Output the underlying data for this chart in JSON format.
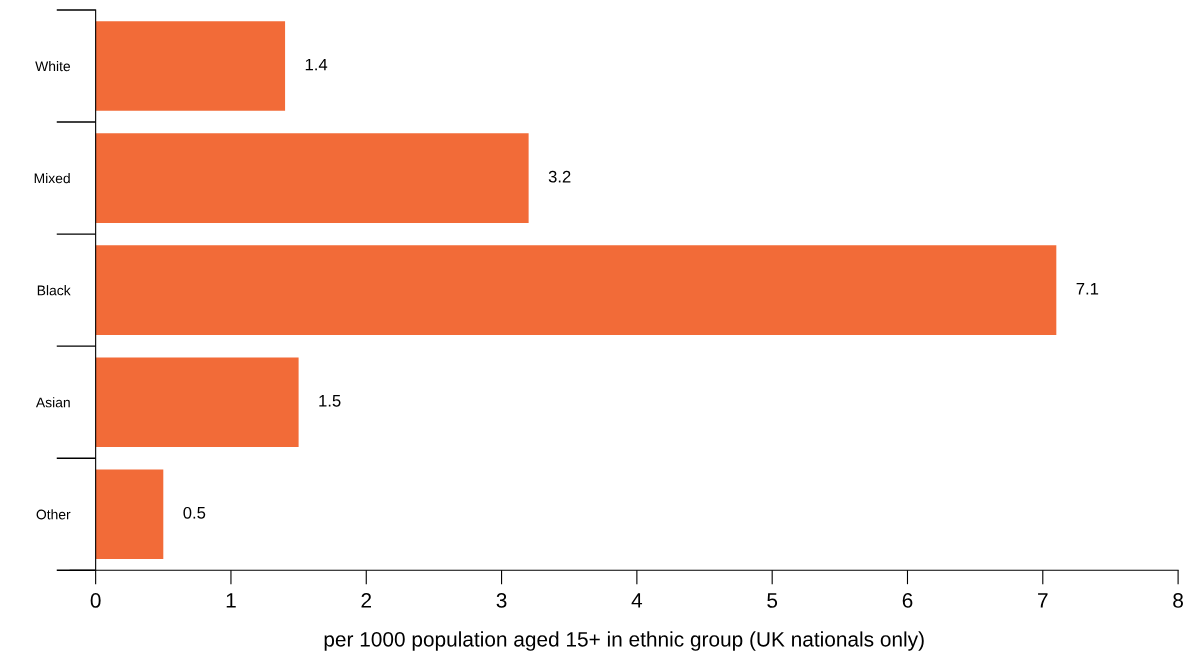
{
  "chart_data": {
    "type": "bar",
    "orientation": "horizontal",
    "categories": [
      "White",
      "Mixed",
      "Black",
      "Asian",
      "Other"
    ],
    "values": [
      1.4,
      3.2,
      7.1,
      1.5,
      0.5
    ],
    "color": "#f26b38",
    "xlim": [
      0,
      8
    ],
    "xticks": [
      0,
      1,
      2,
      3,
      4,
      5,
      6,
      7,
      8
    ],
    "xlabel": "per 1000 population aged 15+ in ethnic group (UK nationals only)",
    "data_labels": true,
    "grid": false,
    "legend": false
  }
}
